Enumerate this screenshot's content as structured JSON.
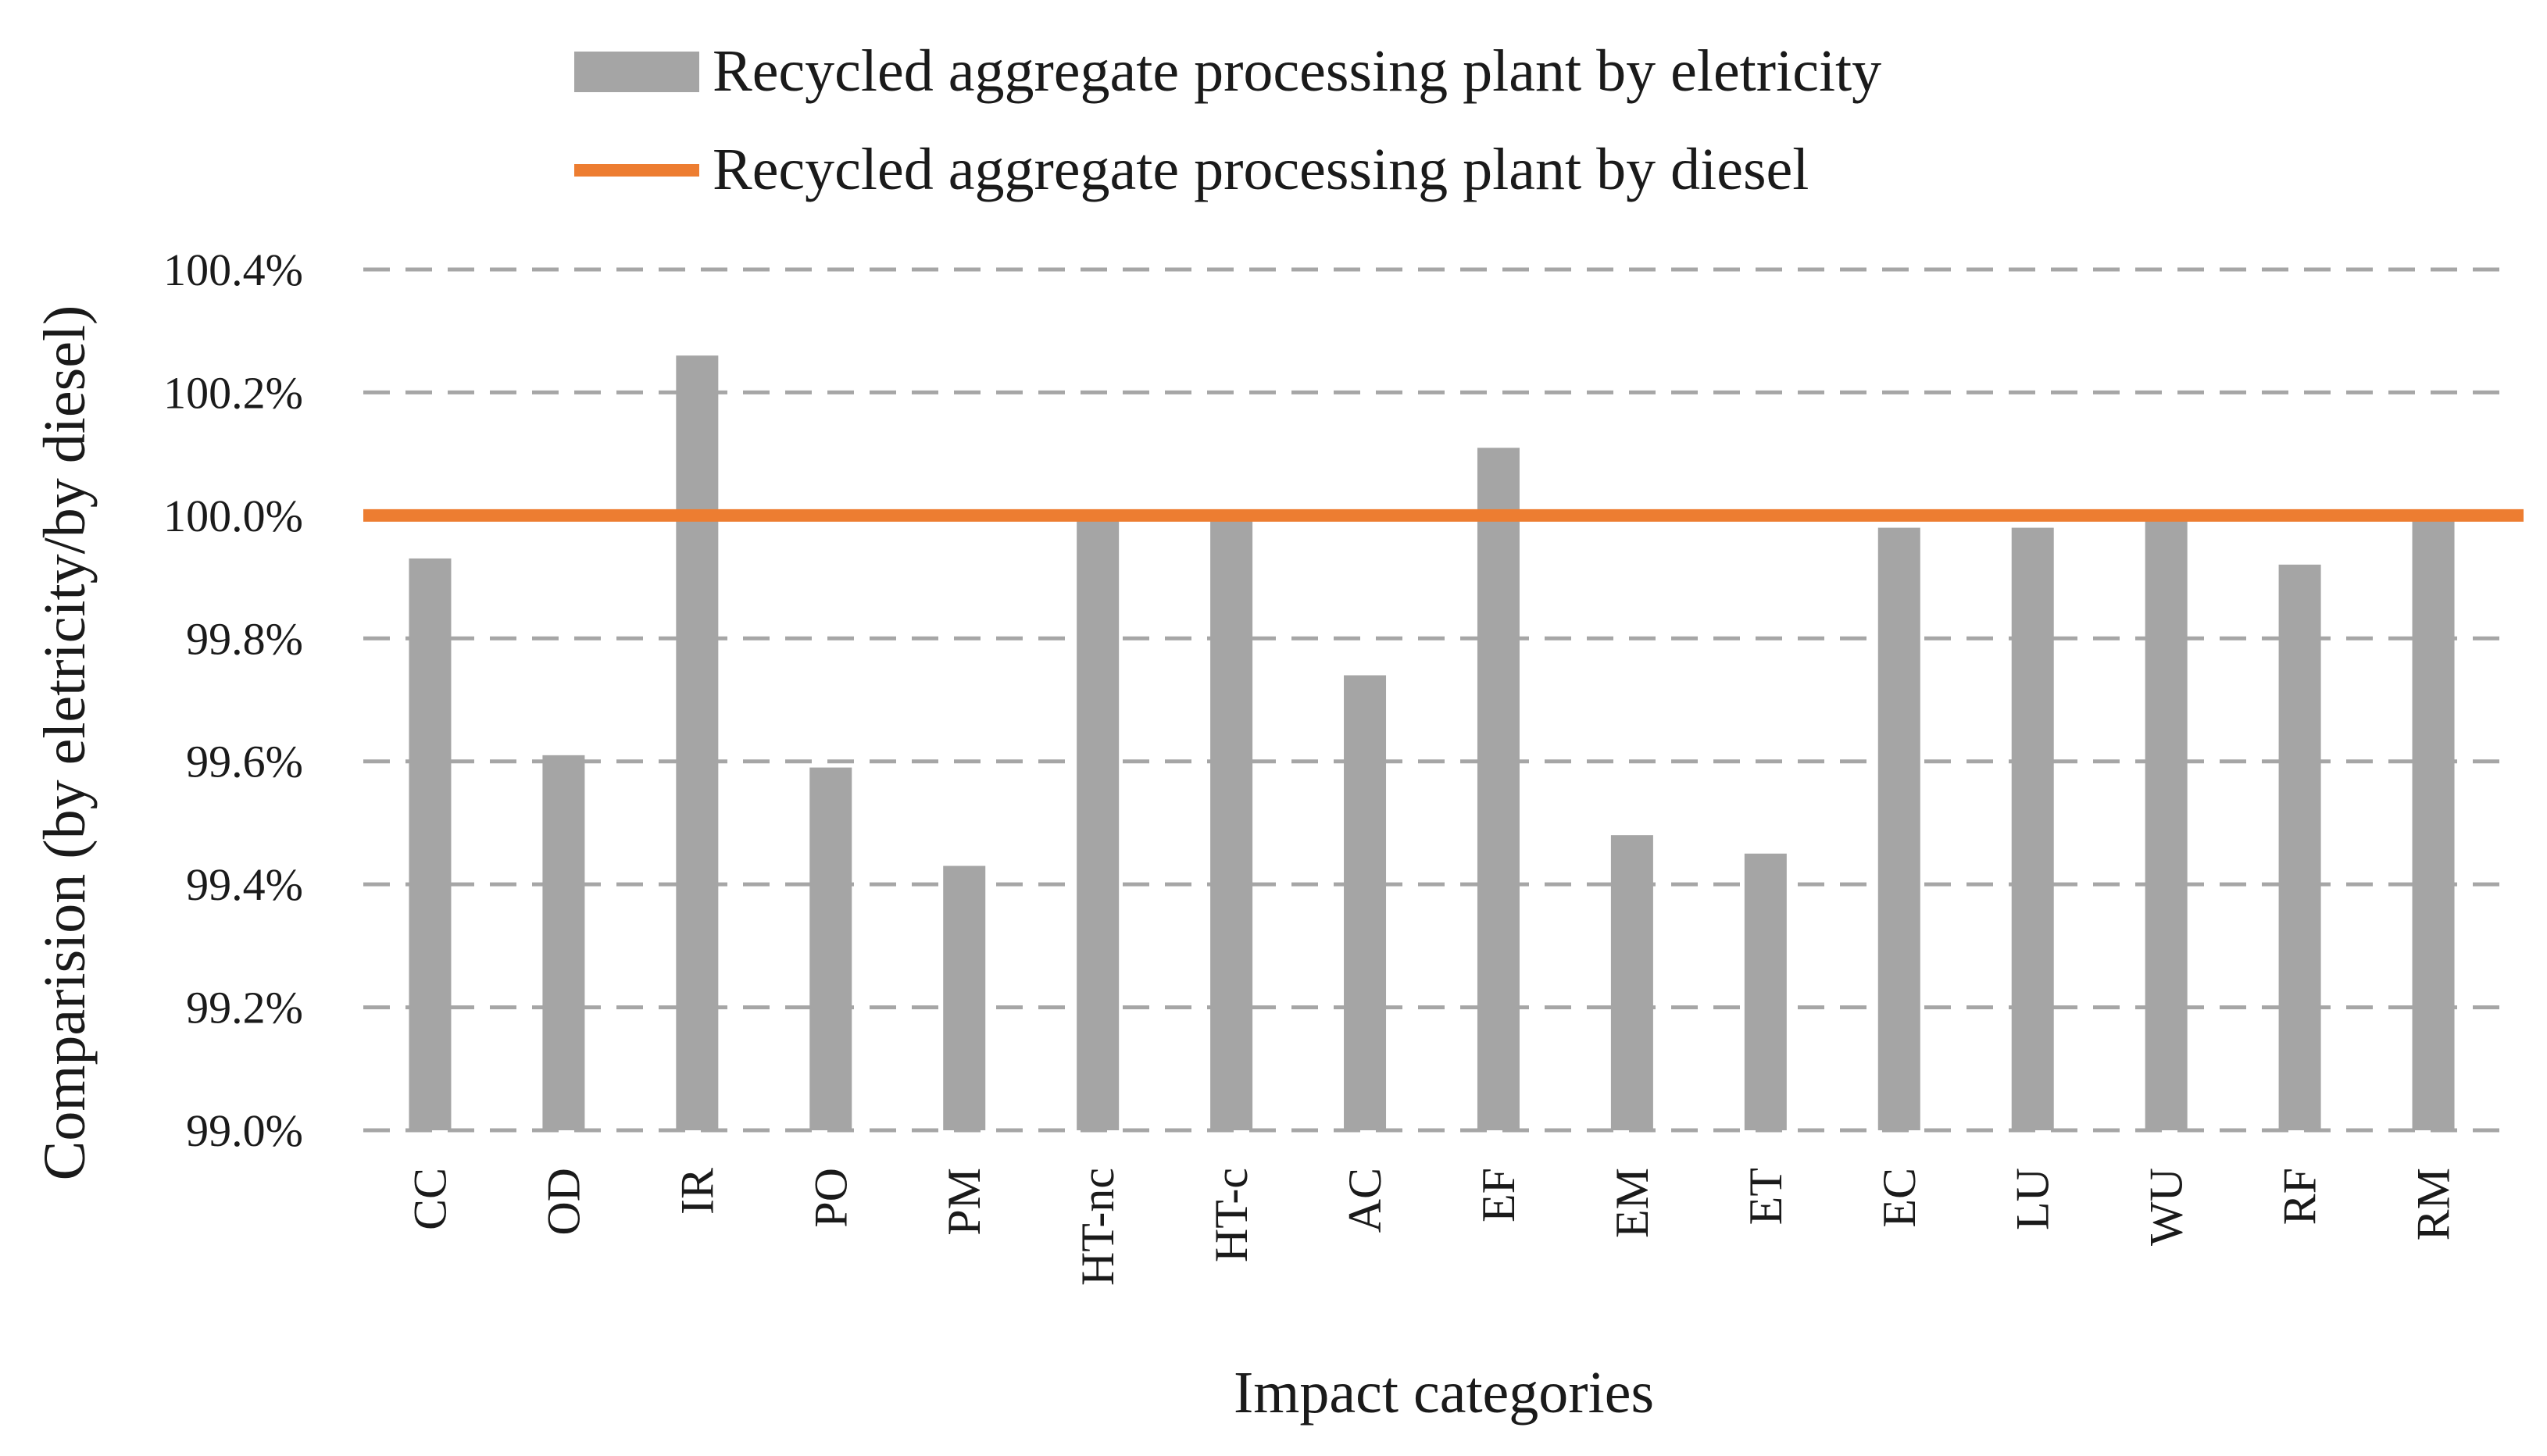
{
  "chart_data": {
    "type": "bar",
    "title": "",
    "xlabel": "Impact categories",
    "ylabel": "Comparision (by eletricity/by diesel)",
    "ylim": [
      99.0,
      100.4
    ],
    "yticks": [
      99.0,
      99.2,
      99.4,
      99.6,
      99.8,
      100.0,
      100.2,
      100.4
    ],
    "ytick_labels": [
      "99.0%",
      "99.2%",
      "99.4%",
      "99.6%",
      "99.8%",
      "100.0%",
      "100.2%",
      "100.4%"
    ],
    "grid": "horizontal-dashed",
    "legend_position": "top-center",
    "categories": [
      "CC",
      "OD",
      "IR",
      "PO",
      "PM",
      "HT-nc",
      "HT-c",
      "AC",
      "EF",
      "EM",
      "ET",
      "EC",
      "LU",
      "WU",
      "RF",
      "RM"
    ],
    "series": [
      {
        "name": "Recycled aggregate processing plant by eletricity",
        "type": "bar",
        "color": "#a5a5a5",
        "values": [
          99.93,
          99.61,
          100.26,
          99.59,
          99.43,
          100.0,
          100.0,
          99.74,
          100.11,
          99.48,
          99.45,
          99.98,
          99.98,
          100.0,
          99.92,
          100.0
        ]
      },
      {
        "name": "Recycled aggregate processing plant by diesel",
        "type": "line",
        "color": "#ed7d31",
        "value": 100.0
      }
    ]
  }
}
